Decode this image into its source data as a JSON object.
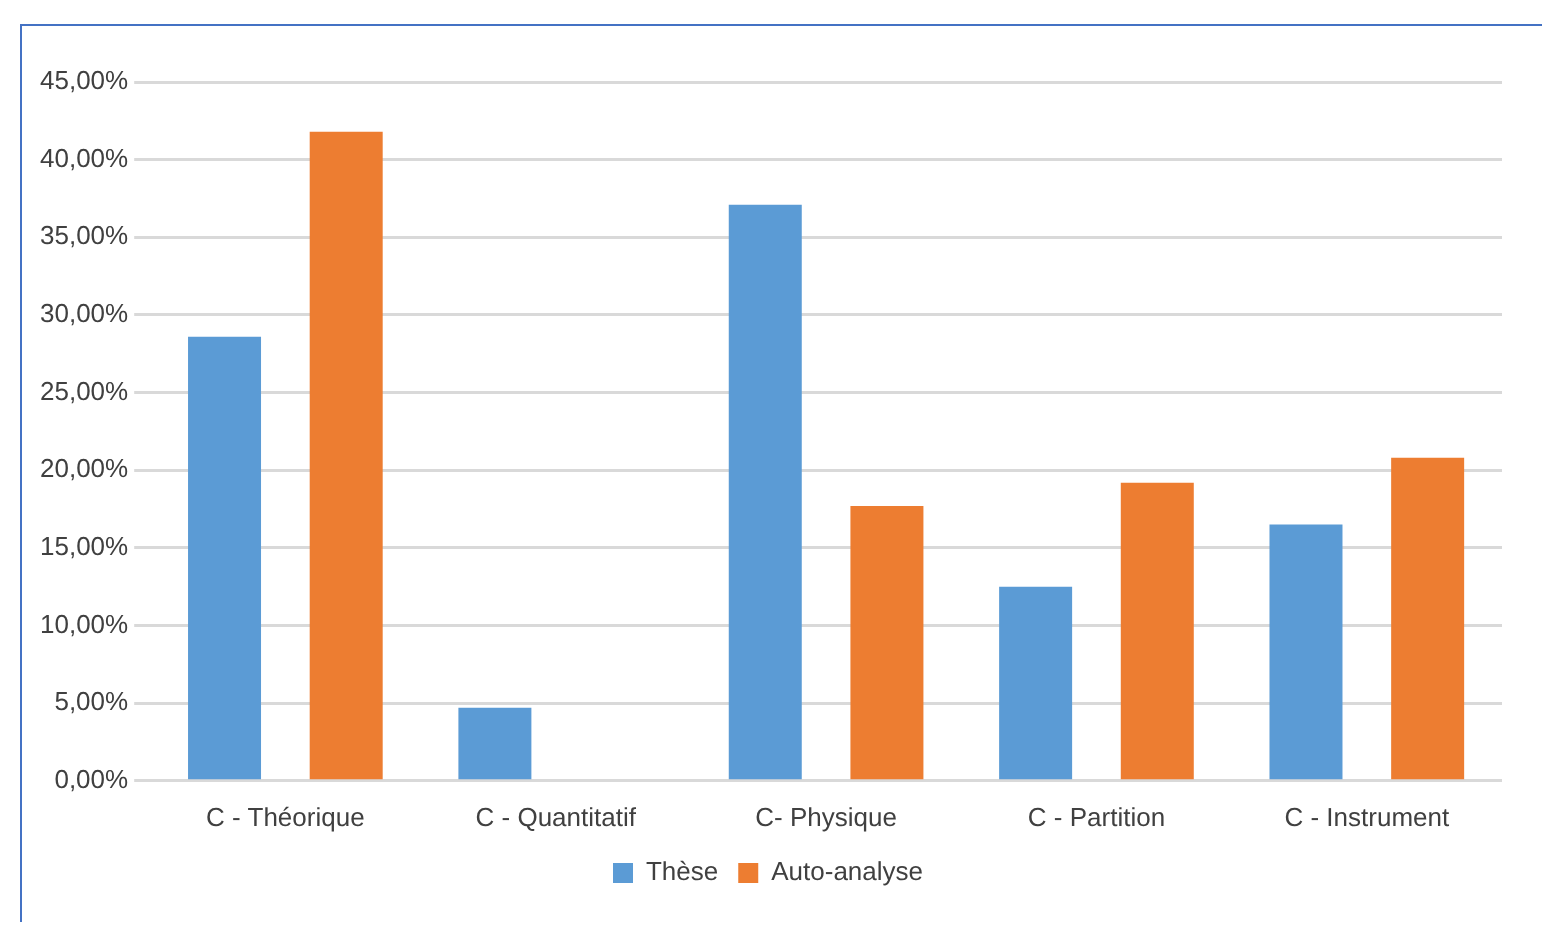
{
  "chart_data": {
    "type": "bar",
    "categories": [
      "C - Théorique",
      "C - Quantitatif",
      "C- Physique",
      "C - Partition",
      "C - Instrument"
    ],
    "series": [
      {
        "name": "Thèse",
        "color": "#5b9bd5",
        "values": [
          28.6,
          4.7,
          37.1,
          12.5,
          16.5
        ]
      },
      {
        "name": "Auto-analyse",
        "color": "#ed7d31",
        "values": [
          41.8,
          0,
          17.7,
          19.2,
          20.8
        ]
      }
    ],
    "ylim": [
      0,
      45
    ],
    "yticks": [
      {
        "value": 0,
        "label": "0,00%"
      },
      {
        "value": 5,
        "label": "5,00%"
      },
      {
        "value": 10,
        "label": "10,00%"
      },
      {
        "value": 15,
        "label": "15,00%"
      },
      {
        "value": 20,
        "label": "20,00%"
      },
      {
        "value": 25,
        "label": "25,00%"
      },
      {
        "value": 30,
        "label": "30,00%"
      },
      {
        "value": 35,
        "label": "35,00%"
      },
      {
        "value": 40,
        "label": "40,00%"
      },
      {
        "value": 45,
        "label": "45,00%"
      }
    ],
    "grid": "y",
    "legend": "bottom"
  }
}
